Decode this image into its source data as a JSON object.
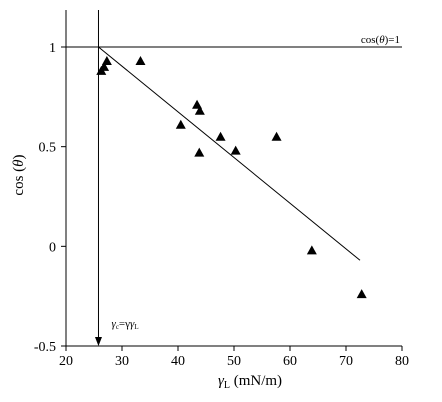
{
  "chart_data": {
    "type": "scatter",
    "xlabel": "γL (mN/m)",
    "ylabel": "cos (θ)",
    "xlim": [
      20,
      80
    ],
    "ylim": [
      -0.5,
      1.15
    ],
    "xticks": [
      "20",
      "30",
      "40",
      "50",
      "60",
      "70",
      "80"
    ],
    "xtick_values": [
      20,
      30,
      40,
      50,
      60,
      70,
      80
    ],
    "yticks": [
      "-0.5",
      "0",
      "0.5",
      "1"
    ],
    "ytick_values": [
      -0.5,
      0,
      0.5,
      1
    ],
    "grid": false,
    "series": [
      {
        "marker": "triangle",
        "x": [
          26.3,
          26.8,
          27.3,
          33.3,
          40.5,
          43.4,
          43.9,
          43.8,
          47.6,
          50.3,
          57.6,
          63.9,
          72.8
        ],
        "y": [
          0.88,
          0.9,
          0.93,
          0.93,
          0.61,
          0.71,
          0.68,
          0.47,
          0.55,
          0.48,
          0.55,
          -0.02,
          -0.24
        ]
      }
    ],
    "fit_line": {
      "x": [
        25.8,
        72.5
      ],
      "y": [
        1.0,
        -0.07
      ]
    },
    "reference_line": {
      "y": 1,
      "label_prefix": "cos(",
      "label_var": "θ",
      "label_suffix": ")=1"
    },
    "critical_line": {
      "x": 25.8,
      "label_var": "γ",
      "label_sub_c": "c",
      "label_eq": "=γ",
      "label_sub_l": "L"
    },
    "colors": {
      "ink": "#000000",
      "background": "#ffffff"
    }
  }
}
